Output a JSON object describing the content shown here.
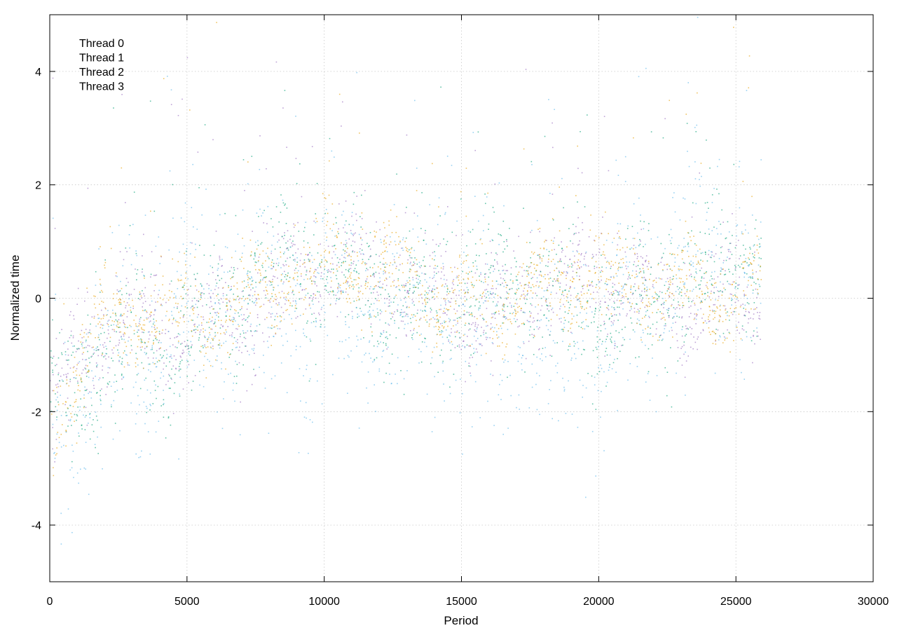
{
  "chart_data": {
    "type": "scatter",
    "title": "",
    "xlabel": "Period",
    "ylabel": "Normalized time",
    "xlim": [
      0,
      30000
    ],
    "ylim": [
      -5,
      5
    ],
    "xticks": [
      0,
      5000,
      10000,
      15000,
      20000,
      25000,
      30000
    ],
    "xtick_labels": [
      "0",
      "5000",
      "10000",
      "15000",
      "20000",
      "25000",
      "30000"
    ],
    "yticks": [
      -4,
      -2,
      0,
      2,
      4
    ],
    "ytick_labels": [
      "-4",
      "-2",
      "0",
      "2",
      "4"
    ],
    "grid": true,
    "legend_position": "top-left",
    "x_extent": [
      0,
      25900
    ],
    "series": [
      {
        "name": "Thread 0",
        "color": "#9467bd",
        "trend": [
          [
            0,
            -2.1
          ],
          [
            2000,
            -0.8
          ],
          [
            5000,
            -0.4
          ],
          [
            8000,
            0.3
          ],
          [
            10000,
            0.4
          ],
          [
            12500,
            0.3
          ],
          [
            15000,
            0.0
          ],
          [
            20000,
            0.1
          ],
          [
            25900,
            0.2
          ]
        ],
        "spread": 0.45
      },
      {
        "name": "Thread 1",
        "color": "#009e73",
        "trend": [
          [
            0,
            -2.0
          ],
          [
            2000,
            -0.9
          ],
          [
            5000,
            -0.5
          ],
          [
            8000,
            0.2
          ],
          [
            10000,
            0.3
          ],
          [
            12500,
            0.2
          ],
          [
            15000,
            -0.1
          ],
          [
            20000,
            0.0
          ],
          [
            25900,
            0.4
          ]
        ],
        "spread": 0.6
      },
      {
        "name": "Thread 2",
        "color": "#56b4e9",
        "trend": [
          [
            0,
            -2.2
          ],
          [
            2000,
            -1.0
          ],
          [
            5000,
            -0.6
          ],
          [
            8000,
            0.0
          ],
          [
            10000,
            0.0
          ],
          [
            12500,
            -0.2
          ],
          [
            15000,
            -0.4
          ],
          [
            20000,
            -0.4
          ],
          [
            25900,
            0.8
          ]
        ],
        "spread": 0.9
      },
      {
        "name": "Thread 3",
        "color": "#e69f00",
        "trend": [
          [
            0,
            -2.1
          ],
          [
            2000,
            -0.7
          ],
          [
            5000,
            -0.3
          ],
          [
            8000,
            0.4
          ],
          [
            10000,
            0.5
          ],
          [
            12500,
            0.3
          ],
          [
            15000,
            0.1
          ],
          [
            20000,
            0.2
          ],
          [
            25900,
            0.3
          ]
        ],
        "spread": 0.4
      }
    ]
  }
}
